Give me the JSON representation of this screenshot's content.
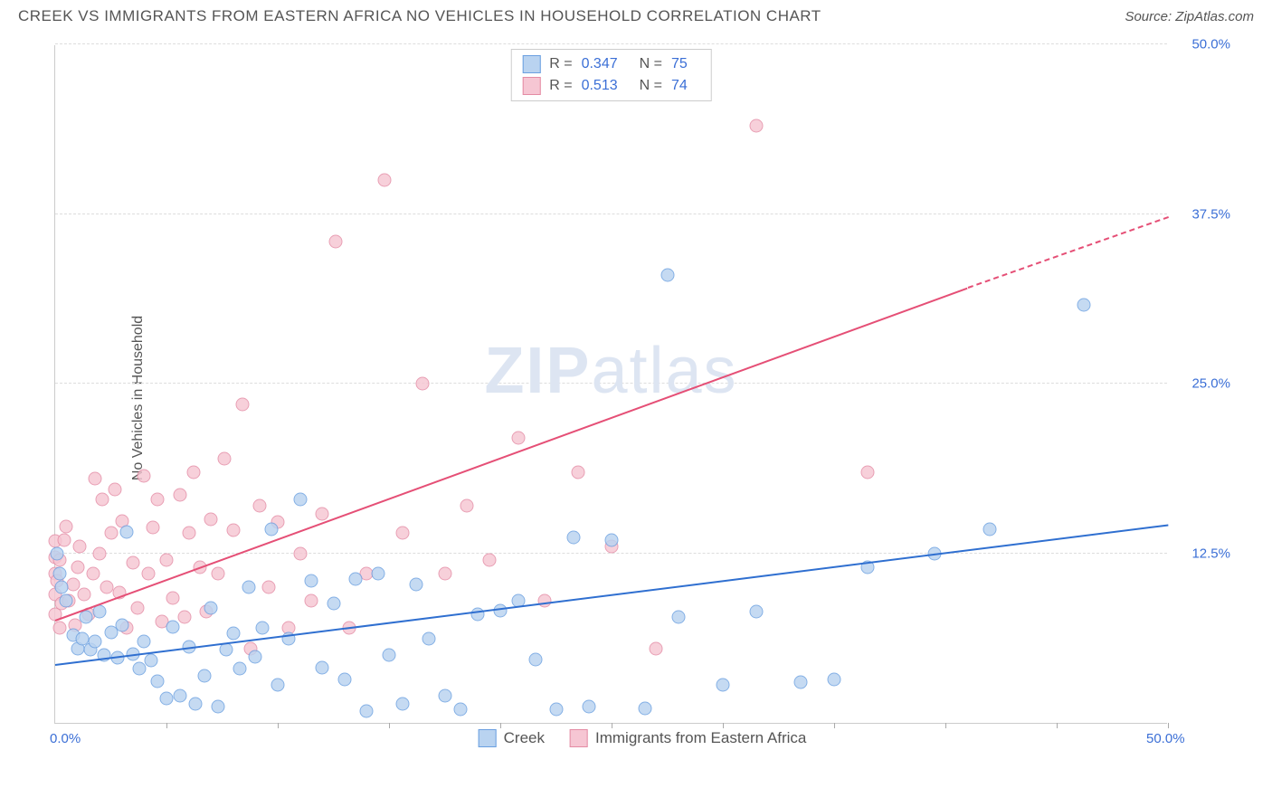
{
  "header": {
    "title": "CREEK VS IMMIGRANTS FROM EASTERN AFRICA NO VEHICLES IN HOUSEHOLD CORRELATION CHART",
    "source": "Source: ZipAtlas.com"
  },
  "y_axis_label": "No Vehicles in Household",
  "watermark": {
    "bold": "ZIP",
    "rest": "atlas"
  },
  "chart": {
    "type": "scatter",
    "xlim": [
      0,
      50
    ],
    "ylim": [
      0,
      50
    ],
    "x_tick_labels": [
      {
        "pos": 0,
        "label": "0.0%"
      },
      {
        "pos": 50,
        "label": "50.0%"
      }
    ],
    "y_tick_labels": [
      {
        "pos": 12.5,
        "label": "12.5%"
      },
      {
        "pos": 25.0,
        "label": "25.0%"
      },
      {
        "pos": 37.5,
        "label": "37.5%"
      },
      {
        "pos": 50.0,
        "label": "50.0%"
      }
    ],
    "x_ticks": [
      5,
      10,
      15,
      20,
      25,
      30,
      35,
      40,
      45,
      50
    ],
    "gridlines_y": [
      12.5,
      25.0,
      37.5,
      50.0
    ],
    "background_color": "#ffffff",
    "grid_color": "#dddddd",
    "axis_color": "#cccccc",
    "tick_label_color": "#3b6fd6",
    "label_color": "#555555"
  },
  "series": {
    "creek": {
      "label": "Creek",
      "R": "0.347",
      "N": "75",
      "fill": "#b9d3f0",
      "stroke": "#6a9fe0",
      "line_color": "#2f6fd0",
      "regression": {
        "x1": 0,
        "y1": 4.2,
        "x2": 50,
        "y2": 14.5,
        "dash_from_x": 50
      },
      "points": [
        [
          0.1,
          12.5
        ],
        [
          0.2,
          11.0
        ],
        [
          0.3,
          10.0
        ],
        [
          0.5,
          9.0
        ],
        [
          0.8,
          6.5
        ],
        [
          1.0,
          5.5
        ],
        [
          1.2,
          6.2
        ],
        [
          1.4,
          7.8
        ],
        [
          1.6,
          5.4
        ],
        [
          1.8,
          6.0
        ],
        [
          2.0,
          8.2
        ],
        [
          2.2,
          5.0
        ],
        [
          2.5,
          6.7
        ],
        [
          2.8,
          4.8
        ],
        [
          3.0,
          7.2
        ],
        [
          3.2,
          14.1
        ],
        [
          3.5,
          5.1
        ],
        [
          3.8,
          4.0
        ],
        [
          4.0,
          6.0
        ],
        [
          4.3,
          4.6
        ],
        [
          4.6,
          3.1
        ],
        [
          5.0,
          1.8
        ],
        [
          5.3,
          7.1
        ],
        [
          5.6,
          2.0
        ],
        [
          6.0,
          5.6
        ],
        [
          6.3,
          1.4
        ],
        [
          6.7,
          3.5
        ],
        [
          7.0,
          8.5
        ],
        [
          7.3,
          1.2
        ],
        [
          7.7,
          5.4
        ],
        [
          8.0,
          6.6
        ],
        [
          8.3,
          4.0
        ],
        [
          8.7,
          10.0
        ],
        [
          9.0,
          4.9
        ],
        [
          9.3,
          7.0
        ],
        [
          9.7,
          14.3
        ],
        [
          10.0,
          2.8
        ],
        [
          10.5,
          6.2
        ],
        [
          11.0,
          16.5
        ],
        [
          11.5,
          10.5
        ],
        [
          12.0,
          4.1
        ],
        [
          12.5,
          8.8
        ],
        [
          13.0,
          3.2
        ],
        [
          13.5,
          10.6
        ],
        [
          14.0,
          0.9
        ],
        [
          14.5,
          11.0
        ],
        [
          15.0,
          5.0
        ],
        [
          15.6,
          1.4
        ],
        [
          16.2,
          10.2
        ],
        [
          16.8,
          6.2
        ],
        [
          17.5,
          2.0
        ],
        [
          18.2,
          1.0
        ],
        [
          19.0,
          8.0
        ],
        [
          20.0,
          8.3
        ],
        [
          20.8,
          9.0
        ],
        [
          21.6,
          4.7
        ],
        [
          22.5,
          1.0
        ],
        [
          23.3,
          13.7
        ],
        [
          24.0,
          1.2
        ],
        [
          25.0,
          13.5
        ],
        [
          26.5,
          1.1
        ],
        [
          27.5,
          33.0
        ],
        [
          28.0,
          7.8
        ],
        [
          30.0,
          2.8
        ],
        [
          31.5,
          8.2
        ],
        [
          33.5,
          3.0
        ],
        [
          35.0,
          3.2
        ],
        [
          36.5,
          11.5
        ],
        [
          39.5,
          12.5
        ],
        [
          42.0,
          14.3
        ],
        [
          46.2,
          30.8
        ]
      ]
    },
    "immigrants": {
      "label": "Immigrants from Eastern Africa",
      "R": "0.513",
      "N": "74",
      "fill": "#f6c6d3",
      "stroke": "#e48ba4",
      "line_color": "#e54f76",
      "regression": {
        "x1": 0,
        "y1": 7.5,
        "x2": 41,
        "y2": 32.0,
        "dash_from_x": 41,
        "dash_x2": 50,
        "dash_y2": 37.2
      },
      "points": [
        [
          0.0,
          8.0
        ],
        [
          0.0,
          9.5
        ],
        [
          0.0,
          11.0
        ],
        [
          0.0,
          12.2
        ],
        [
          0.0,
          13.4
        ],
        [
          0.1,
          10.5
        ],
        [
          0.2,
          7.0
        ],
        [
          0.2,
          12.0
        ],
        [
          0.3,
          8.8
        ],
        [
          0.4,
          13.5
        ],
        [
          0.5,
          14.5
        ],
        [
          0.6,
          9.0
        ],
        [
          0.8,
          10.2
        ],
        [
          0.9,
          7.2
        ],
        [
          1.0,
          11.5
        ],
        [
          1.1,
          13.0
        ],
        [
          1.3,
          9.5
        ],
        [
          1.5,
          8.0
        ],
        [
          1.7,
          11.0
        ],
        [
          1.8,
          18.0
        ],
        [
          2.0,
          12.5
        ],
        [
          2.1,
          16.5
        ],
        [
          2.3,
          10.0
        ],
        [
          2.5,
          14.0
        ],
        [
          2.7,
          17.2
        ],
        [
          2.9,
          9.6
        ],
        [
          3.0,
          14.9
        ],
        [
          3.2,
          7.0
        ],
        [
          3.5,
          11.8
        ],
        [
          3.7,
          8.5
        ],
        [
          4.0,
          18.2
        ],
        [
          4.2,
          11.0
        ],
        [
          4.4,
          14.4
        ],
        [
          4.6,
          16.5
        ],
        [
          4.8,
          7.5
        ],
        [
          5.0,
          12.0
        ],
        [
          5.3,
          9.2
        ],
        [
          5.6,
          16.8
        ],
        [
          5.8,
          7.8
        ],
        [
          6.0,
          14.0
        ],
        [
          6.2,
          18.5
        ],
        [
          6.5,
          11.5
        ],
        [
          6.8,
          8.2
        ],
        [
          7.0,
          15.0
        ],
        [
          7.3,
          11.0
        ],
        [
          7.6,
          19.5
        ],
        [
          8.0,
          14.2
        ],
        [
          8.4,
          23.5
        ],
        [
          8.8,
          5.5
        ],
        [
          9.2,
          16.0
        ],
        [
          9.6,
          10.0
        ],
        [
          10.0,
          14.8
        ],
        [
          10.5,
          7.0
        ],
        [
          11.0,
          12.5
        ],
        [
          11.5,
          9.0
        ],
        [
          12.0,
          15.4
        ],
        [
          12.6,
          35.5
        ],
        [
          13.2,
          7.0
        ],
        [
          14.0,
          11.0
        ],
        [
          14.8,
          40.0
        ],
        [
          15.6,
          14.0
        ],
        [
          16.5,
          25.0
        ],
        [
          17.5,
          11.0
        ],
        [
          18.5,
          16.0
        ],
        [
          19.5,
          12.0
        ],
        [
          20.8,
          21.0
        ],
        [
          22.0,
          9.0
        ],
        [
          23.5,
          18.5
        ],
        [
          25.0,
          13.0
        ],
        [
          27.0,
          5.5
        ],
        [
          31.5,
          44.0
        ],
        [
          36.5,
          18.5
        ]
      ]
    }
  },
  "legend_stats": {
    "R_label": "R =",
    "N_label": "N ="
  }
}
